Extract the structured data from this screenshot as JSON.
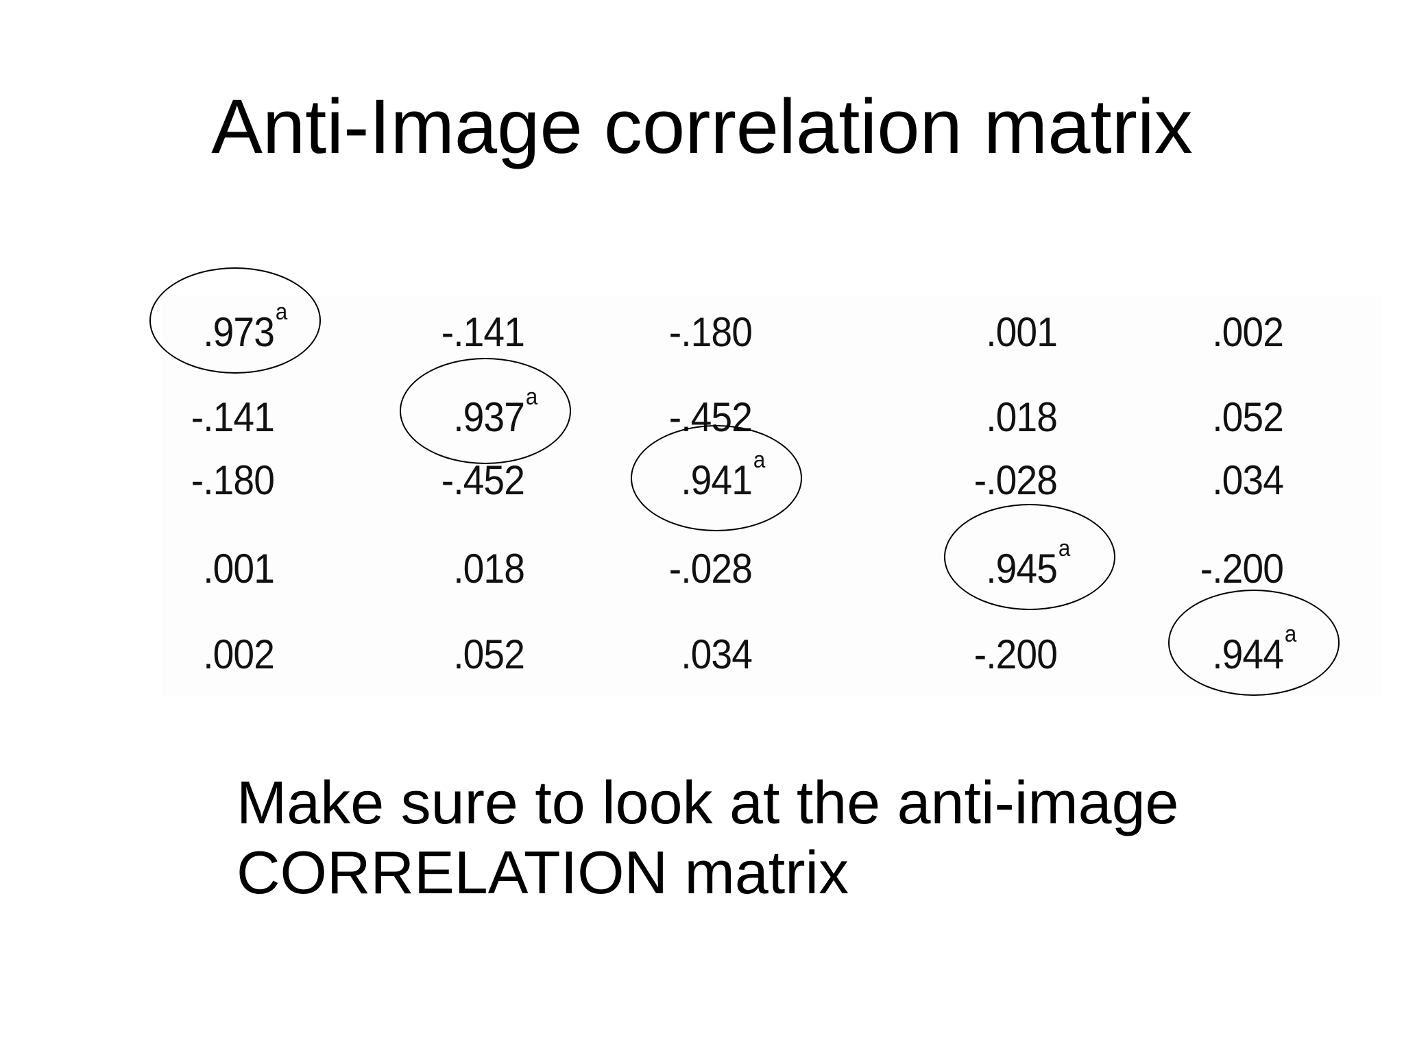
{
  "slide": {
    "title": "Anti-Image correlation matrix",
    "caption_line1": "Make sure to look at the anti-image",
    "caption_line2": "CORRELATION matrix"
  },
  "matrix": {
    "superscript": "a",
    "rows": [
      [
        ".973",
        "-.141",
        "-.180",
        ".001",
        ".002"
      ],
      [
        "-.141",
        ".937",
        "-.452",
        ".018",
        ".052"
      ],
      [
        "-.180",
        "-.452",
        ".941",
        "-.028",
        ".034"
      ],
      [
        ".001",
        ".018",
        "-.028",
        ".945",
        "-.200"
      ],
      [
        ".002",
        ".052",
        ".034",
        "-.200",
        ".944"
      ]
    ]
  }
}
